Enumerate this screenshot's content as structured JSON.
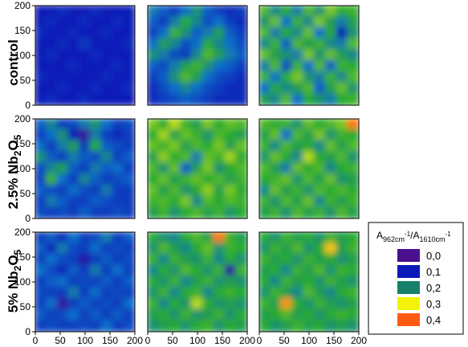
{
  "row_labels": [
    {
      "text": "control"
    },
    {
      "text": "2.5% Nb",
      "sub": "2",
      "mid": "O",
      "sub2": "5"
    },
    {
      "text": "5% Nb",
      "sub": "2",
      "mid": "O",
      "sub2": "5"
    }
  ],
  "legend": {
    "title_a": "A",
    "title_a_sub": "962cm",
    "title_a_sup": "-1",
    "title_sep": "/A",
    "title_b_sub": "1610cm",
    "title_b_sup": "-1",
    "entries": [
      {
        "label": "0,0",
        "color": "#4a0f8c"
      },
      {
        "label": "0,1",
        "color": "#0a1ab8"
      },
      {
        "label": "0,2",
        "color": "#16806a"
      },
      {
        "label": "0,3",
        "color": "#f2f20a"
      },
      {
        "label": "0,4",
        "color": "#ff5a12"
      }
    ]
  },
  "chart_data": {
    "type": "heatmap",
    "title": "",
    "xlabel": "",
    "ylabel": "",
    "xlim": [
      0,
      200
    ],
    "ylim": [
      0,
      200
    ],
    "x_ticks": [
      "0",
      "50",
      "100",
      "150",
      "200"
    ],
    "y_ticks": [
      "0",
      "50",
      "100",
      "150",
      "200"
    ],
    "color_scale": [
      0.0,
      0.1,
      0.2,
      0.3,
      0.4
    ],
    "rows": [
      "control",
      "2.5% Nb2O5",
      "5% Nb2O5"
    ],
    "panels": [
      {
        "row": "control",
        "column": 1,
        "values": [
          [
            0.1,
            0.1,
            0.11,
            0.1,
            0.1,
            0.11,
            0.1,
            0.1,
            0.1
          ],
          [
            0.1,
            0.11,
            0.1,
            0.1,
            0.11,
            0.1,
            0.1,
            0.11,
            0.1
          ],
          [
            0.11,
            0.1,
            0.1,
            0.11,
            0.1,
            0.1,
            0.11,
            0.1,
            0.1
          ],
          [
            0.1,
            0.1,
            0.11,
            0.1,
            0.12,
            0.1,
            0.1,
            0.1,
            0.11
          ],
          [
            0.1,
            0.11,
            0.1,
            0.1,
            0.1,
            0.11,
            0.1,
            0.1,
            0.1
          ],
          [
            0.1,
            0.1,
            0.1,
            0.11,
            0.1,
            0.1,
            0.1,
            0.11,
            0.1
          ],
          [
            0.11,
            0.1,
            0.1,
            0.1,
            0.1,
            0.1,
            0.11,
            0.1,
            0.1
          ],
          [
            0.1,
            0.1,
            0.11,
            0.1,
            0.1,
            0.11,
            0.1,
            0.1,
            0.11
          ],
          [
            0.1,
            0.11,
            0.1,
            0.1,
            0.11,
            0.1,
            0.1,
            0.1,
            0.1
          ]
        ]
      },
      {
        "row": "control",
        "column": 2,
        "values": [
          [
            0.16,
            0.14,
            0.12,
            0.15,
            0.18,
            0.14,
            0.12,
            0.11,
            0.12
          ],
          [
            0.14,
            0.12,
            0.16,
            0.2,
            0.17,
            0.13,
            0.15,
            0.12,
            0.11
          ],
          [
            0.12,
            0.15,
            0.21,
            0.18,
            0.14,
            0.16,
            0.19,
            0.14,
            0.12
          ],
          [
            0.15,
            0.19,
            0.17,
            0.13,
            0.15,
            0.2,
            0.17,
            0.15,
            0.13
          ],
          [
            0.18,
            0.16,
            0.13,
            0.12,
            0.17,
            0.22,
            0.19,
            0.16,
            0.14
          ],
          [
            0.14,
            0.13,
            0.16,
            0.19,
            0.21,
            0.18,
            0.15,
            0.14,
            0.12
          ],
          [
            0.12,
            0.14,
            0.18,
            0.22,
            0.19,
            0.15,
            0.13,
            0.12,
            0.11
          ],
          [
            0.11,
            0.13,
            0.15,
            0.17,
            0.15,
            0.13,
            0.12,
            0.11,
            0.11
          ],
          [
            0.11,
            0.12,
            0.13,
            0.14,
            0.13,
            0.12,
            0.11,
            0.11,
            0.11
          ]
        ]
      },
      {
        "row": "control",
        "column": 3,
        "values": [
          [
            0.22,
            0.17,
            0.2,
            0.16,
            0.22,
            0.18,
            0.24,
            0.2,
            0.21
          ],
          [
            0.18,
            0.23,
            0.15,
            0.21,
            0.17,
            0.24,
            0.19,
            0.16,
            0.19
          ],
          [
            0.22,
            0.16,
            0.2,
            0.17,
            0.23,
            0.15,
            0.2,
            0.1,
            0.18
          ],
          [
            0.17,
            0.21,
            0.14,
            0.22,
            0.19,
            0.21,
            0.17,
            0.16,
            0.22
          ],
          [
            0.23,
            0.19,
            0.18,
            0.16,
            0.24,
            0.18,
            0.23,
            0.19,
            0.17
          ],
          [
            0.16,
            0.22,
            0.13,
            0.21,
            0.15,
            0.22,
            0.14,
            0.21,
            0.2
          ],
          [
            0.21,
            0.15,
            0.2,
            0.24,
            0.18,
            0.16,
            0.21,
            0.17,
            0.22
          ],
          [
            0.15,
            0.2,
            0.17,
            0.19,
            0.22,
            0.14,
            0.19,
            0.23,
            0.18
          ],
          [
            0.19,
            0.17,
            0.22,
            0.15,
            0.2,
            0.18,
            0.16,
            0.2,
            0.21
          ]
        ]
      },
      {
        "row": "2.5% Nb2O5",
        "column": 1,
        "values": [
          [
            0.14,
            0.17,
            0.12,
            0.13,
            0.16,
            0.18,
            0.15,
            0.12,
            0.13
          ],
          [
            0.12,
            0.15,
            0.18,
            0.1,
            0.03,
            0.16,
            0.12,
            0.11,
            0.12
          ],
          [
            0.15,
            0.12,
            0.16,
            0.19,
            0.12,
            0.2,
            0.14,
            0.13,
            0.12
          ],
          [
            0.18,
            0.14,
            0.12,
            0.16,
            0.14,
            0.13,
            0.17,
            0.12,
            0.14
          ],
          [
            0.13,
            0.17,
            0.19,
            0.14,
            0.12,
            0.16,
            0.14,
            0.15,
            0.12
          ],
          [
            0.12,
            0.21,
            0.15,
            0.12,
            0.17,
            0.14,
            0.12,
            0.13,
            0.14
          ],
          [
            0.14,
            0.13,
            0.12,
            0.15,
            0.13,
            0.12,
            0.16,
            0.12,
            0.12
          ],
          [
            0.12,
            0.16,
            0.14,
            0.12,
            0.12,
            0.14,
            0.13,
            0.12,
            0.12
          ],
          [
            0.13,
            0.12,
            0.13,
            0.12,
            0.14,
            0.12,
            0.12,
            0.13,
            0.12
          ]
        ]
      },
      {
        "row": "2.5% Nb2O5",
        "column": 2,
        "values": [
          [
            0.24,
            0.2,
            0.27,
            0.21,
            0.19,
            0.24,
            0.2,
            0.23,
            0.22
          ],
          [
            0.2,
            0.26,
            0.19,
            0.23,
            0.21,
            0.18,
            0.22,
            0.2,
            0.19
          ],
          [
            0.23,
            0.21,
            0.24,
            0.19,
            0.22,
            0.2,
            0.24,
            0.19,
            0.23
          ],
          [
            0.19,
            0.25,
            0.2,
            0.22,
            0.16,
            0.23,
            0.21,
            0.26,
            0.2
          ],
          [
            0.22,
            0.18,
            0.23,
            0.14,
            0.19,
            0.24,
            0.18,
            0.2,
            0.22
          ],
          [
            0.2,
            0.23,
            0.19,
            0.21,
            0.23,
            0.2,
            0.22,
            0.19,
            0.21
          ],
          [
            0.23,
            0.19,
            0.22,
            0.18,
            0.2,
            0.25,
            0.19,
            0.24,
            0.2
          ],
          [
            0.21,
            0.22,
            0.2,
            0.24,
            0.17,
            0.22,
            0.2,
            0.22,
            0.21
          ],
          [
            0.19,
            0.21,
            0.18,
            0.2,
            0.22,
            0.19,
            0.21,
            0.18,
            0.2
          ]
        ]
      },
      {
        "row": "2.5% Nb2O5",
        "column": 3,
        "values": [
          [
            0.22,
            0.2,
            0.21,
            0.18,
            0.23,
            0.2,
            0.22,
            0.24,
            0.38
          ],
          [
            0.19,
            0.23,
            0.15,
            0.22,
            0.19,
            0.24,
            0.18,
            0.21,
            0.2
          ],
          [
            0.21,
            0.17,
            0.22,
            0.19,
            0.2,
            0.17,
            0.23,
            0.19,
            0.22
          ],
          [
            0.18,
            0.23,
            0.2,
            0.17,
            0.27,
            0.2,
            0.19,
            0.22,
            0.18
          ],
          [
            0.22,
            0.19,
            0.16,
            0.23,
            0.2,
            0.22,
            0.17,
            0.2,
            0.21
          ],
          [
            0.2,
            0.21,
            0.23,
            0.18,
            0.22,
            0.19,
            0.23,
            0.18,
            0.19
          ],
          [
            0.17,
            0.23,
            0.19,
            0.21,
            0.18,
            0.22,
            0.2,
            0.22,
            0.2
          ],
          [
            0.21,
            0.18,
            0.22,
            0.19,
            0.23,
            0.17,
            0.21,
            0.19,
            0.21
          ],
          [
            0.19,
            0.21,
            0.18,
            0.22,
            0.19,
            0.21,
            0.18,
            0.22,
            0.19
          ]
        ]
      },
      {
        "row": "5% Nb2O5",
        "column": 1,
        "values": [
          [
            0.12,
            0.14,
            0.11,
            0.15,
            0.12,
            0.13,
            0.16,
            0.12,
            0.14
          ],
          [
            0.14,
            0.11,
            0.16,
            0.13,
            0.12,
            0.15,
            0.12,
            0.13,
            0.12
          ],
          [
            0.12,
            0.15,
            0.13,
            0.12,
            0.06,
            0.12,
            0.14,
            0.12,
            0.13
          ],
          [
            0.15,
            0.13,
            0.11,
            0.14,
            0.12,
            0.16,
            0.12,
            0.15,
            0.12
          ],
          [
            0.12,
            0.14,
            0.15,
            0.12,
            0.13,
            0.12,
            0.14,
            0.12,
            0.14
          ],
          [
            0.13,
            0.12,
            0.12,
            0.16,
            0.12,
            0.15,
            0.12,
            0.13,
            0.12
          ],
          [
            0.12,
            0.15,
            0.04,
            0.12,
            0.14,
            0.12,
            0.13,
            0.12,
            0.15
          ],
          [
            0.14,
            0.12,
            0.13,
            0.15,
            0.12,
            0.14,
            0.12,
            0.14,
            0.12
          ],
          [
            0.12,
            0.13,
            0.12,
            0.12,
            0.13,
            0.12,
            0.15,
            0.12,
            0.13
          ]
        ]
      },
      {
        "row": "5% Nb2O5",
        "column": 2,
        "values": [
          [
            0.2,
            0.18,
            0.17,
            0.2,
            0.22,
            0.19,
            0.38,
            0.21,
            0.19
          ],
          [
            0.18,
            0.22,
            0.19,
            0.17,
            0.2,
            0.23,
            0.18,
            0.21,
            0.2
          ],
          [
            0.21,
            0.17,
            0.21,
            0.19,
            0.18,
            0.21,
            0.17,
            0.2,
            0.18
          ],
          [
            0.17,
            0.2,
            0.18,
            0.22,
            0.2,
            0.18,
            0.21,
            0.05,
            0.21
          ],
          [
            0.2,
            0.18,
            0.21,
            0.17,
            0.19,
            0.21,
            0.18,
            0.19,
            0.18
          ],
          [
            0.18,
            0.21,
            0.17,
            0.2,
            0.21,
            0.17,
            0.2,
            0.21,
            0.2
          ],
          [
            0.21,
            0.17,
            0.2,
            0.18,
            0.27,
            0.2,
            0.18,
            0.19,
            0.18
          ],
          [
            0.19,
            0.2,
            0.18,
            0.21,
            0.18,
            0.19,
            0.21,
            0.18,
            0.2
          ],
          [
            0.18,
            0.19,
            0.2,
            0.18,
            0.2,
            0.21,
            0.18,
            0.2,
            0.19
          ]
        ]
      },
      {
        "row": "5% Nb2O5",
        "column": 3,
        "values": [
          [
            0.2,
            0.18,
            0.21,
            0.19,
            0.2,
            0.18,
            0.21,
            0.19,
            0.2
          ],
          [
            0.18,
            0.21,
            0.19,
            0.22,
            0.18,
            0.2,
            0.33,
            0.19,
            0.21
          ],
          [
            0.21,
            0.19,
            0.2,
            0.18,
            0.21,
            0.19,
            0.2,
            0.18,
            0.19
          ],
          [
            0.19,
            0.2,
            0.17,
            0.21,
            0.19,
            0.22,
            0.18,
            0.21,
            0.2
          ],
          [
            0.2,
            0.17,
            0.21,
            0.19,
            0.2,
            0.18,
            0.21,
            0.19,
            0.18
          ],
          [
            0.18,
            0.21,
            0.19,
            0.17,
            0.22,
            0.19,
            0.17,
            0.2,
            0.21
          ],
          [
            0.21,
            0.19,
            0.36,
            0.2,
            0.18,
            0.21,
            0.19,
            0.18,
            0.19
          ],
          [
            0.19,
            0.2,
            0.22,
            0.19,
            0.2,
            0.18,
            0.2,
            0.21,
            0.2
          ],
          [
            0.2,
            0.18,
            0.19,
            0.21,
            0.19,
            0.2,
            0.18,
            0.19,
            0.18
          ]
        ]
      }
    ]
  }
}
